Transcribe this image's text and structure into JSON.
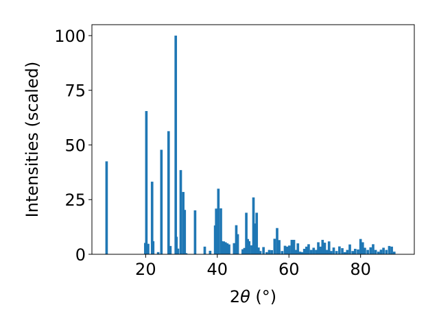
{
  "chart_data": {
    "type": "bar",
    "xlabel_prefix": "2",
    "xlabel_symbol": "θ",
    "xlabel_suffix": " (°)",
    "ylabel": "Intensities (scaled)",
    "xlim": [
      5,
      95
    ],
    "ylim": [
      0,
      105
    ],
    "xticks": [
      20,
      40,
      60,
      80
    ],
    "yticks": [
      0,
      25,
      50,
      75,
      100
    ],
    "grid": false,
    "bar_color": "#1f77b4",
    "bar_width": 0.7,
    "x": [
      9.1,
      19.9,
      20.2,
      20.7,
      21.8,
      22.1,
      23.5,
      24.4,
      26.4,
      26.9,
      28.4,
      28.6,
      29.0,
      29.8,
      30.5,
      30.9,
      31.3,
      33.8,
      36.5,
      38.0,
      39.4,
      39.7,
      40.3,
      41.0,
      41.3,
      41.8,
      42.3,
      42.8,
      43.3,
      44.7,
      45.3,
      45.7,
      47.1,
      47.6,
      48.1,
      48.5,
      48.9,
      49.6,
      50.1,
      50.6,
      51.0,
      51.5,
      52.0,
      52.9,
      53.8,
      54.5,
      55.2,
      56.0,
      56.7,
      57.3,
      58.1,
      58.9,
      59.5,
      60.1,
      60.8,
      61.4,
      62.0,
      62.5,
      63.1,
      63.7,
      64.3,
      64.9,
      65.5,
      66.2,
      66.9,
      67.6,
      68.2,
      68.8,
      69.4,
      70.0,
      70.6,
      71.2,
      71.8,
      72.5,
      73.3,
      74.1,
      74.9,
      75.6,
      76.3,
      77.0,
      77.8,
      78.5,
      79.3,
      80.0,
      80.6,
      81.2,
      82.0,
      82.8,
      83.5,
      84.2,
      85.0,
      85.7,
      86.4,
      87.2,
      88.0,
      88.7,
      89.4
    ],
    "values": [
      42.5,
      5.2,
      65.5,
      4.8,
      33.2,
      6.0,
      1.0,
      47.8,
      56.3,
      3.8,
      100.0,
      8.0,
      2.6,
      38.5,
      28.5,
      20.3,
      0.5,
      20.1,
      3.5,
      1.6,
      13.2,
      20.9,
      30.0,
      21.0,
      6.0,
      5.9,
      5.5,
      5.0,
      4.5,
      5.1,
      13.3,
      9.2,
      2.3,
      2.9,
      19.0,
      7.0,
      6.0,
      4.1,
      26.0,
      14.1,
      19.0,
      3.1,
      1.5,
      3.3,
      1.0,
      2.0,
      1.9,
      7.1,
      12.0,
      6.5,
      1.5,
      3.9,
      3.5,
      4.0,
      6.6,
      6.6,
      2.0,
      5.0,
      1.2,
      1.0,
      2.5,
      3.5,
      4.6,
      2.0,
      3.0,
      2.0,
      5.5,
      3.5,
      6.6,
      5.3,
      2.0,
      5.9,
      1.5,
      3.1,
      1.5,
      3.6,
      2.8,
      1.0,
      2.0,
      4.5,
      1.5,
      2.5,
      2.2,
      7.0,
      5.5,
      3.0,
      2.0,
      3.2,
      4.6,
      2.0,
      1.2,
      2.1,
      3.0,
      2.0,
      3.8,
      3.5,
      1.2
    ]
  }
}
